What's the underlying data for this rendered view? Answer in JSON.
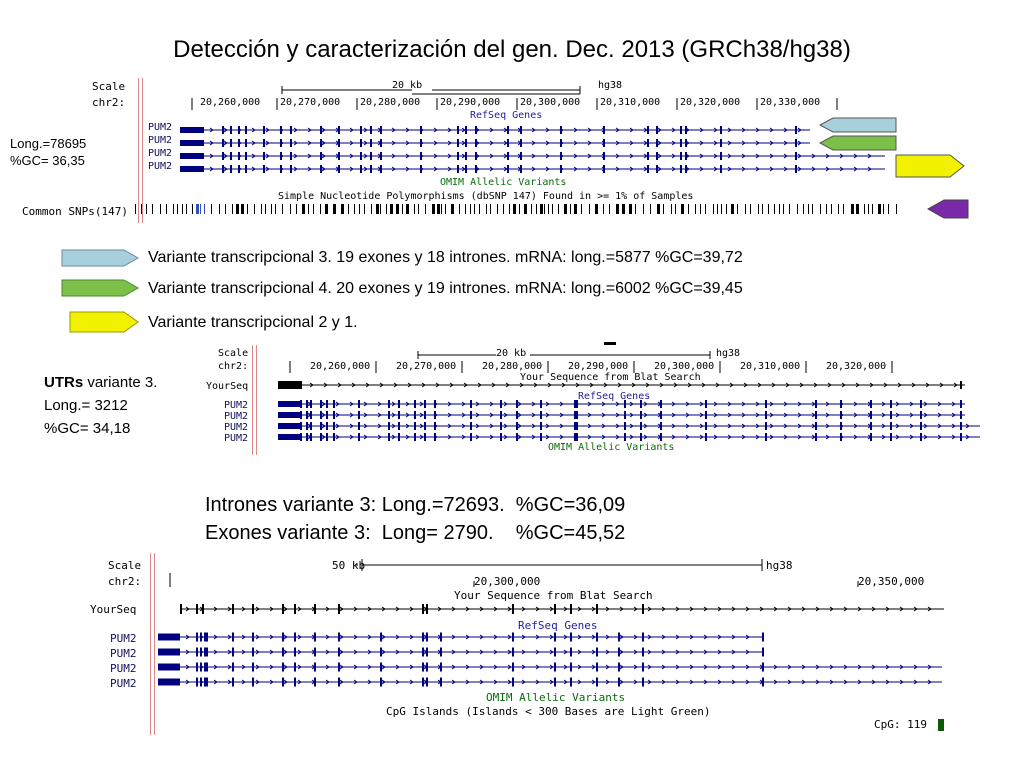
{
  "title": "Detección y caracterización del gen. Dec. 2013 (GRCh38/hg38)",
  "browser1": {
    "scale_label": "Scale",
    "chr_label": "chr2:",
    "scale_value": "20 kb",
    "assembly": "hg38",
    "positions": [
      "20,260,000",
      "20,270,000",
      "20,280,000",
      "20,290,000",
      "20,300,000",
      "20,310,000",
      "20,320,000",
      "20,330,000"
    ],
    "refseq_label": "RefSeq Genes",
    "gene_labels": [
      "PUM2",
      "PUM2",
      "PUM2",
      "PUM2"
    ],
    "omim_label": "OMIM Allelic Variants",
    "snp_track_title": "Simple Nucleotide Polymorphisms (dbSNP 147) Found in >= 1% of Samples",
    "snp_label": "Common SNPs(147)"
  },
  "left_info1": {
    "long": "Long.=78695",
    "gc": "%GC= 36,35"
  },
  "variants": [
    {
      "text": "Variante transcripcional 3. 19 exones y 18 intrones.  mRNA: long.=5877  %GC=39,72",
      "color": "#a8d0dc"
    },
    {
      "text": "Variante transcripcional 4.  20 exones y 19 intrones.  mRNA: long.=6002 %GC=39,45",
      "color": "#7cc04a"
    },
    {
      "text": "Variante transcripcional 2 y 1.",
      "color": "#f2f200"
    }
  ],
  "side_arrow_colors": [
    "#a8d0dc",
    "#7cc04a",
    "#f2f200",
    "#7a2aa8"
  ],
  "browser2": {
    "scale_label": "Scale",
    "chr_label": "chr2:",
    "scale_value": "20 kb",
    "assembly": "hg38",
    "positions": [
      "20,260,000",
      "20,270,000",
      "20,280,000",
      "20,290,000",
      "20,300,000",
      "20,310,000",
      "20,320,000"
    ],
    "yourseq_label": "YourSeq",
    "blat_label": "Your Sequence from Blat Search",
    "refseq_label": "RefSeq Genes",
    "gene_labels": [
      "PUM2",
      "PUM2",
      "PUM2",
      "PUM2"
    ],
    "omim_label": "OMIM Allelic Variants"
  },
  "utrs": {
    "bold": "UTRs",
    "rest": " variante 3.",
    "long": "Long.= 3212",
    "gc": "%GC= 34,18"
  },
  "introns_text": "Intrones variante 3: Long.=72693.  %GC=36,09",
  "exons_text": "Exones variante 3:  Long= 2790.    %GC=45,52",
  "browser3": {
    "scale_label": "Scale",
    "chr_label": "chr2:",
    "scale_value": "50 kb",
    "assembly": "hg38",
    "positions": [
      "20,300,000",
      "20,350,000"
    ],
    "yourseq_label": "YourSeq",
    "blat_label": "Your Sequence from Blat Search",
    "refseq_label": "RefSeq Genes",
    "gene_labels": [
      "PUM2",
      "PUM2",
      "PUM2",
      "PUM2"
    ],
    "omim_label": "OMIM Allelic Variants",
    "cpg_title": "CpG Islands (Islands < 300 Bases are Light Green)",
    "cpg_label": "CpG: 119"
  }
}
